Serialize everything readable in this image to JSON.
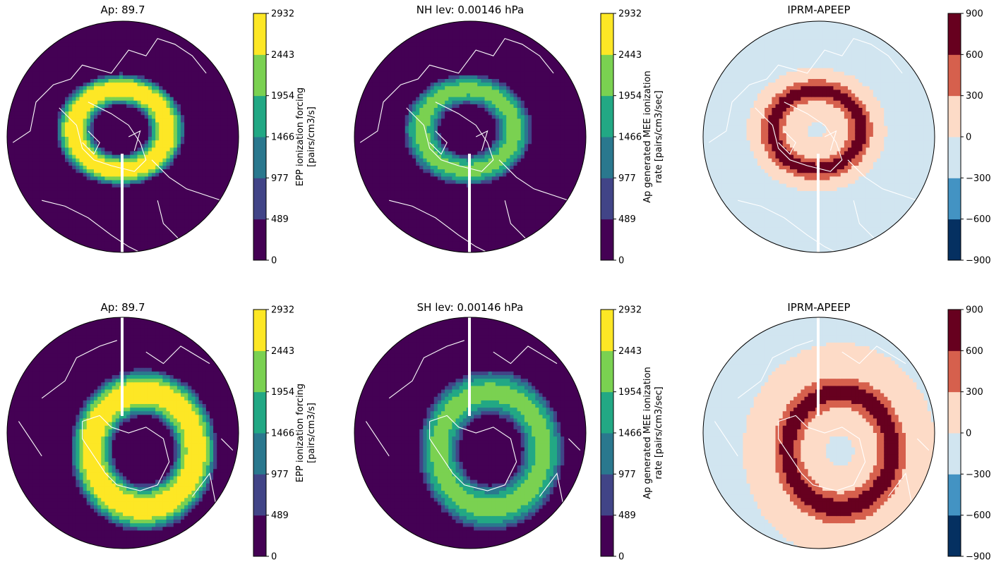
{
  "figure": {
    "colormaps": {
      "viridis": [
        "#440154",
        "#414487",
        "#2a788e",
        "#22a884",
        "#7ad151",
        "#fde725"
      ],
      "rdbu_r": [
        "#053061",
        "#4393c3",
        "#d1e5f0",
        "#fddbc7",
        "#d6604d",
        "#67001f"
      ]
    },
    "coastline_color": "#ffffff",
    "map_edge_color": "#000000"
  },
  "chart_data": [
    {
      "type": "heatmap",
      "projection": "north-polar-orthographic",
      "title": "Ap: 89.7",
      "colorbar": {
        "label_lines": [
          "EPP ionization forcing",
          "[pairs/cm3/s]"
        ],
        "ticks": [
          "0",
          "489",
          "977",
          "1466",
          "1954",
          "2443",
          "2932"
        ],
        "levels": [
          0,
          489,
          977,
          1466,
          1954,
          2443,
          2932
        ],
        "cmap": "viridis"
      },
      "field": {
        "kind": "ring",
        "peak": 2932,
        "center": [
          -0.02,
          -0.06
        ],
        "radius": [
          0.4,
          0.35
        ],
        "width": 0.15,
        "tilt": 0,
        "gap_angle": 0.6
      }
    },
    {
      "type": "heatmap",
      "projection": "north-polar-orthographic",
      "title": "NH lev: 0.00146 hPa",
      "colorbar": {
        "label_lines": [
          "Ap generated MEE ionization",
          "rate [pairs/cm3/sec]"
        ],
        "ticks": [
          "0",
          "489",
          "977",
          "1466",
          "1954",
          "2443",
          "2932"
        ],
        "levels": [
          0,
          489,
          977,
          1466,
          1954,
          2443,
          2932
        ],
        "cmap": "viridis"
      },
      "field": {
        "kind": "ring",
        "peak": 2200,
        "center": [
          -0.02,
          -0.06
        ],
        "radius": [
          0.4,
          0.35
        ],
        "width": 0.15,
        "tilt": 0,
        "gap_angle": 0.6
      }
    },
    {
      "type": "heatmap",
      "projection": "north-polar-orthographic",
      "title": "IPRM-APEEP",
      "colorbar": {
        "label_lines": [],
        "ticks": [
          "900",
          "600",
          "300",
          "0",
          "−300",
          "−600",
          "−900"
        ],
        "levels": [
          -900,
          -600,
          -300,
          0,
          300,
          600,
          900
        ],
        "cmap": "rdbu_r"
      },
      "field": {
        "kind": "diff",
        "center": [
          -0.02,
          -0.06
        ],
        "radius": [
          0.38,
          0.34
        ],
        "width": 0.09,
        "outer_extent": 0.58,
        "inner_extent": 0.2
      }
    },
    {
      "type": "heatmap",
      "projection": "south-polar-orthographic",
      "title": "Ap: 89.7",
      "colorbar": {
        "label_lines": [
          "EPP ionization forcing",
          "[pairs/cm3/s]"
        ],
        "ticks": [
          "0",
          "489",
          "977",
          "1466",
          "1954",
          "2443",
          "2932"
        ],
        "levels": [
          0,
          489,
          977,
          1466,
          1954,
          2443,
          2932
        ],
        "cmap": "viridis"
      },
      "field": {
        "kind": "ring",
        "peak": 2932,
        "center": [
          0.18,
          0.15
        ],
        "radius": [
          0.45,
          0.5
        ],
        "width": 0.2,
        "tilt": 0,
        "gap_angle": null
      }
    },
    {
      "type": "heatmap",
      "projection": "south-polar-orthographic",
      "title": "SH lev: 0.00146 hPa",
      "colorbar": {
        "label_lines": [
          "Ap generated MEE ionization",
          "rate [pairs/cm3/sec]"
        ],
        "ticks": [
          "0",
          "489",
          "977",
          "1466",
          "1954",
          "2443",
          "2932"
        ],
        "levels": [
          0,
          489,
          977,
          1466,
          1954,
          2443,
          2932
        ],
        "cmap": "viridis"
      },
      "field": {
        "kind": "ring",
        "peak": 2200,
        "center": [
          0.18,
          0.15
        ],
        "radius": [
          0.45,
          0.5
        ],
        "width": 0.2,
        "tilt": 0,
        "gap_angle": null
      }
    },
    {
      "type": "heatmap",
      "projection": "south-polar-orthographic",
      "title": "IPRM-APEEP",
      "colorbar": {
        "label_lines": [],
        "ticks": [
          "900",
          "600",
          "300",
          "0",
          "−300",
          "−600",
          "−900"
        ],
        "levels": [
          -900,
          -600,
          -300,
          0,
          300,
          600,
          900
        ],
        "cmap": "rdbu_r"
      },
      "field": {
        "kind": "diff",
        "center": [
          0.18,
          0.15
        ],
        "radius": [
          0.45,
          0.5
        ],
        "width": 0.12,
        "outer_extent": 0.85,
        "inner_extent": 0.3
      }
    }
  ]
}
